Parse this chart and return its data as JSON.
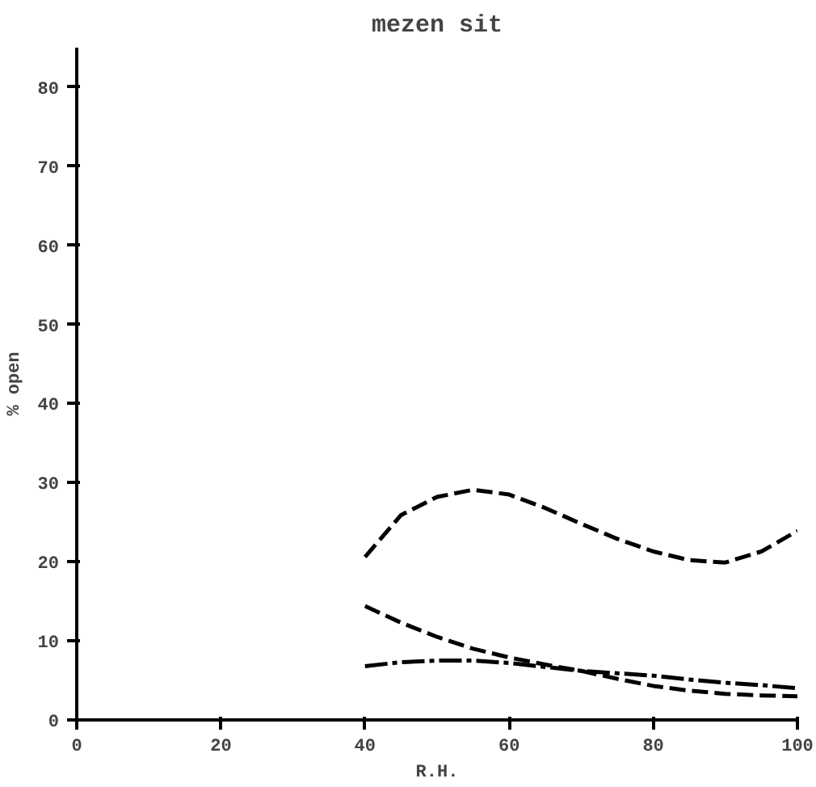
{
  "chart_data": {
    "type": "line",
    "title": "mezen sit",
    "xlabel": "R.H.",
    "ylabel": "% open",
    "x": [
      40,
      45,
      50,
      55,
      60,
      65,
      70,
      75,
      80,
      85,
      90,
      95,
      100
    ],
    "series": [
      {
        "color": "#000000",
        "line_style": "dashed",
        "values": [
          20.6,
          25.9,
          28.2,
          29.1,
          28.5,
          26.8,
          24.8,
          22.9,
          21.3,
          20.2,
          19.9,
          21.3,
          23.9
        ]
      },
      {
        "color": "#000000",
        "line_style": "dashed",
        "values": [
          14.4,
          12.3,
          10.5,
          9.0,
          7.9,
          7.0,
          6.2,
          5.2,
          4.3,
          3.7,
          3.3,
          3.1,
          3.0
        ]
      },
      {
        "color": "#000000",
        "line_style": "dotted",
        "values": [
          6.8,
          7.3,
          7.5,
          7.5,
          7.2,
          6.7,
          6.2,
          5.9,
          5.6,
          5.1,
          4.7,
          4.4,
          4.0
        ]
      }
    ],
    "xlim": [
      0,
      100
    ],
    "ylim": [
      0,
      85
    ],
    "xticks": [
      0,
      20,
      40,
      60,
      80,
      100
    ],
    "yticks": [
      0,
      10,
      20,
      30,
      40,
      50,
      60,
      70,
      80
    ],
    "grid": false,
    "marker": "none"
  }
}
